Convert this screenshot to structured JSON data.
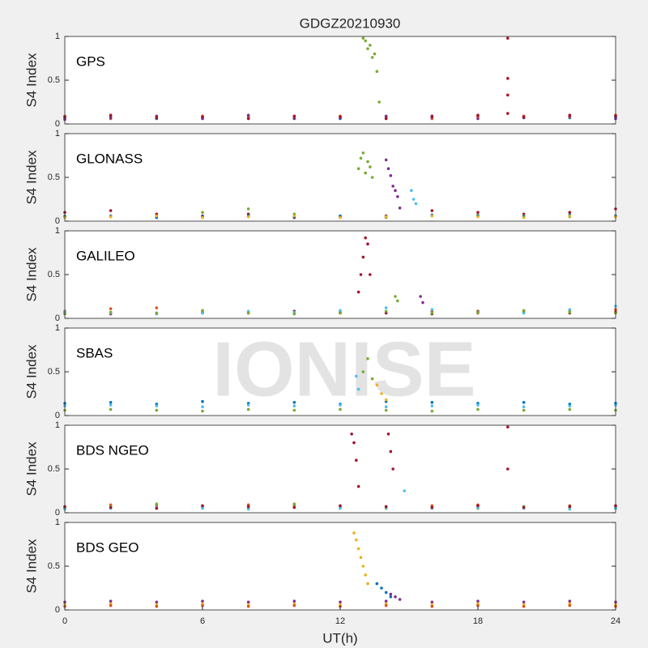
{
  "chart_data": [
    {
      "type": "scatter",
      "title": "GDGZ20210930",
      "label": "GPS",
      "ylabel": "S4 Index",
      "xlim": [
        0,
        24
      ],
      "ylim": [
        0,
        1
      ],
      "yticks": [
        0,
        0.5,
        1
      ],
      "series": [
        {
          "color": "#0072BD",
          "x": [
            0,
            2,
            4,
            6,
            8,
            10,
            12,
            14,
            16,
            18,
            20,
            22,
            24
          ],
          "values": [
            0.07,
            0.08,
            0.06,
            0.07,
            0.08,
            0.07,
            0.06,
            0.08,
            0.07,
            0.09,
            0.08,
            0.07,
            0.08
          ]
        },
        {
          "color": "#D95319",
          "x": [
            0,
            2,
            4,
            6,
            8,
            10,
            12,
            14,
            16,
            18,
            20,
            22,
            24
          ],
          "values": [
            0.09,
            0.06,
            0.08,
            0.09,
            0.07,
            0.08,
            0.09,
            0.07,
            0.06,
            0.08,
            0.09,
            0.08,
            0.1
          ]
        },
        {
          "color": "#7E2F8E",
          "x": [
            0,
            2,
            4,
            6,
            8,
            10,
            12,
            14,
            16,
            18,
            20,
            22,
            24
          ],
          "values": [
            0.05,
            0.07,
            0.09,
            0.06,
            0.1,
            0.06,
            0.07,
            0.09,
            0.08,
            0.06,
            0.07,
            0.09,
            0.06
          ]
        },
        {
          "color": "#A2142F",
          "x": [
            0,
            2,
            4,
            6,
            8,
            10,
            12,
            14,
            16,
            18,
            20,
            22,
            24
          ],
          "values": [
            0.08,
            0.1,
            0.07,
            0.08,
            0.06,
            0.09,
            0.08,
            0.06,
            0.09,
            0.1,
            0.08,
            0.1,
            0.09
          ]
        },
        {
          "color": "#77AC30",
          "x": [
            13,
            13.1,
            13.2,
            13.3,
            13.4,
            13.5,
            13.6,
            13.7
          ],
          "values": [
            0.98,
            0.95,
            0.86,
            0.9,
            0.76,
            0.8,
            0.6,
            0.25
          ]
        },
        {
          "color": "#A2142F",
          "x": [
            19.3,
            19.3,
            19.3,
            19.3
          ],
          "values": [
            0.98,
            0.52,
            0.33,
            0.12
          ]
        }
      ]
    },
    {
      "type": "scatter",
      "label": "GLONASS",
      "ylabel": "S4 Index",
      "xlim": [
        0,
        24
      ],
      "ylim": [
        0,
        1
      ],
      "yticks": [
        0,
        0.5,
        1
      ],
      "series": [
        {
          "color": "#A2142F",
          "x": [
            0,
            2,
            4,
            6,
            8,
            10,
            12,
            14,
            16,
            18,
            20,
            22,
            24
          ],
          "values": [
            0.1,
            0.12,
            0.08,
            0.06,
            0.08,
            0.04,
            0.05,
            0.06,
            0.12,
            0.1,
            0.08,
            0.1,
            0.14
          ]
        },
        {
          "color": "#77AC30",
          "x": [
            0,
            2,
            4,
            6,
            8,
            10,
            12,
            14,
            16,
            18,
            20,
            22,
            24
          ],
          "values": [
            0.06,
            0.05,
            0.05,
            0.1,
            0.14,
            0.08,
            0.05,
            0.04,
            0.06,
            0.07,
            0.06,
            0.05,
            0.06
          ]
        },
        {
          "color": "#0072BD",
          "x": [
            0,
            2,
            4,
            6,
            8,
            10,
            12,
            14,
            16,
            18,
            20,
            22,
            24
          ],
          "values": [
            0.05,
            0.06,
            0.04,
            0.05,
            0.06,
            0.05,
            0.06,
            0.05,
            0.07,
            0.06,
            0.05,
            0.07,
            0.06
          ]
        },
        {
          "color": "#EDB120",
          "x": [
            0,
            2,
            4,
            6,
            8,
            10,
            12,
            14,
            16,
            18,
            20,
            22,
            24
          ],
          "values": [
            0.04,
            0.05,
            0.06,
            0.04,
            0.05,
            0.06,
            0.04,
            0.05,
            0.06,
            0.05,
            0.04,
            0.06,
            0.05
          ]
        },
        {
          "color": "#77AC30",
          "x": [
            12.8,
            12.9,
            13,
            13.1,
            13.2,
            13.3,
            13.4
          ],
          "values": [
            0.6,
            0.72,
            0.78,
            0.55,
            0.68,
            0.62,
            0.5
          ]
        },
        {
          "color": "#7E2F8E",
          "x": [
            14,
            14.1,
            14.2,
            14.3,
            14.4,
            14.5,
            14.6
          ],
          "values": [
            0.7,
            0.6,
            0.52,
            0.4,
            0.35,
            0.28,
            0.15
          ]
        },
        {
          "color": "#4DBEEE",
          "x": [
            15.1,
            15.2,
            15.3
          ],
          "values": [
            0.35,
            0.25,
            0.2
          ]
        }
      ]
    },
    {
      "type": "scatter",
      "label": "GALILEO",
      "ylabel": "S4 Index",
      "xlim": [
        0,
        24
      ],
      "ylim": [
        0,
        1
      ],
      "yticks": [
        0,
        0.5,
        1
      ],
      "series": [
        {
          "color": "#D95319",
          "x": [
            0,
            2,
            4,
            6,
            8,
            10,
            12,
            14,
            16,
            18,
            20,
            22,
            24
          ],
          "values": [
            0.08,
            0.11,
            0.12,
            0.06,
            0.07,
            0.08,
            0.06,
            0.07,
            0.08,
            0.06,
            0.07,
            0.08,
            0.1
          ]
        },
        {
          "color": "#A2142F",
          "x": [
            0,
            2,
            4,
            6,
            8,
            10,
            12,
            14,
            16,
            18,
            20,
            22,
            24
          ],
          "values": [
            0.06,
            0.05,
            0.06,
            0.07,
            0.06,
            0.08,
            0.07,
            0.06,
            0.05,
            0.08,
            0.07,
            0.06,
            0.07
          ]
        },
        {
          "color": "#4DBEEE",
          "x": [
            0,
            2,
            4,
            6,
            8,
            10,
            12,
            14,
            16,
            18,
            20,
            22,
            24
          ],
          "values": [
            0.07,
            0.06,
            0.05,
            0.06,
            0.08,
            0.07,
            0.09,
            0.12,
            0.1,
            0.07,
            0.06,
            0.1,
            0.14
          ]
        },
        {
          "color": "#77AC30",
          "x": [
            0,
            2,
            4,
            6,
            8,
            10,
            12,
            14,
            16,
            18,
            20,
            22,
            24
          ],
          "values": [
            0.05,
            0.07,
            0.06,
            0.09,
            0.06,
            0.05,
            0.06,
            0.08,
            0.06,
            0.07,
            0.09,
            0.07,
            0.06
          ]
        },
        {
          "color": "#A2142F",
          "x": [
            12.8,
            12.9,
            13,
            13.1,
            13.2,
            13.3
          ],
          "values": [
            0.3,
            0.5,
            0.7,
            0.92,
            0.85,
            0.5
          ]
        },
        {
          "color": "#77AC30",
          "x": [
            14.4,
            14.5
          ],
          "values": [
            0.25,
            0.2
          ]
        },
        {
          "color": "#7E2F8E",
          "x": [
            15.5,
            15.6
          ],
          "values": [
            0.25,
            0.18
          ]
        }
      ]
    },
    {
      "type": "scatter",
      "label": "SBAS",
      "annotation": "IONISE",
      "ylabel": "S4 Index",
      "xlim": [
        0,
        24
      ],
      "ylim": [
        0,
        1
      ],
      "yticks": [
        0,
        0.5,
        1
      ],
      "series": [
        {
          "color": "#0072BD",
          "x": [
            0,
            2,
            4,
            6,
            8,
            10,
            12,
            14,
            16,
            18,
            20,
            22,
            24
          ],
          "values": [
            0.14,
            0.15,
            0.13,
            0.16,
            0.14,
            0.15,
            0.13,
            0.16,
            0.15,
            0.14,
            0.15,
            0.13,
            0.14
          ]
        },
        {
          "color": "#4DBEEE",
          "x": [
            0,
            2,
            4,
            6,
            8,
            10,
            12,
            14,
            16,
            18,
            20,
            22,
            24
          ],
          "values": [
            0.11,
            0.12,
            0.11,
            0.1,
            0.12,
            0.11,
            0.12,
            0.1,
            0.11,
            0.12,
            0.1,
            0.11,
            0.12
          ]
        },
        {
          "color": "#77AC30",
          "x": [
            0,
            2,
            4,
            6,
            8,
            10,
            12,
            14,
            16,
            18,
            20,
            22,
            24
          ],
          "values": [
            0.06,
            0.07,
            0.06,
            0.05,
            0.07,
            0.06,
            0.07,
            0.06,
            0.05,
            0.07,
            0.06,
            0.07,
            0.06
          ]
        },
        {
          "color": "#77AC30",
          "x": [
            13,
            13.2,
            13.4
          ],
          "values": [
            0.5,
            0.65,
            0.42
          ]
        },
        {
          "color": "#4DBEEE",
          "x": [
            12.7,
            12.8
          ],
          "values": [
            0.45,
            0.3
          ]
        },
        {
          "color": "#EDB120",
          "x": [
            13.6,
            13.8,
            14
          ],
          "values": [
            0.35,
            0.25,
            0.18
          ]
        }
      ]
    },
    {
      "type": "scatter",
      "label": "BDS NGEO",
      "ylabel": "S4 Index",
      "xlim": [
        0,
        24
      ],
      "ylim": [
        0,
        1
      ],
      "yticks": [
        0,
        0.5,
        1
      ],
      "series": [
        {
          "color": "#D95319",
          "x": [
            0,
            2,
            4,
            6,
            8,
            10,
            12,
            14,
            16,
            18,
            20,
            22,
            24
          ],
          "values": [
            0.06,
            0.09,
            0.08,
            0.07,
            0.09,
            0.08,
            0.06,
            0.07,
            0.08,
            0.09,
            0.07,
            0.08,
            0.06
          ]
        },
        {
          "color": "#77AC30",
          "x": [
            0,
            2,
            4,
            6,
            8,
            10,
            12,
            14,
            16,
            18,
            20,
            22,
            24
          ],
          "values": [
            0.05,
            0.07,
            0.1,
            0.06,
            0.05,
            0.1,
            0.07,
            0.05,
            0.06,
            0.05,
            0.07,
            0.06,
            0.05
          ]
        },
        {
          "color": "#4DBEEE",
          "x": [
            0,
            2,
            4,
            6,
            8,
            10,
            12,
            14,
            16,
            18,
            20,
            22,
            24
          ],
          "values": [
            0.04,
            0.05,
            0.06,
            0.05,
            0.04,
            0.06,
            0.05,
            0.06,
            0.05,
            0.06,
            0.05,
            0.04,
            0.05
          ]
        },
        {
          "color": "#A2142F",
          "x": [
            0,
            2,
            4,
            6,
            8,
            10,
            12,
            14,
            16,
            18,
            20,
            22,
            24
          ],
          "values": [
            0.07,
            0.06,
            0.05,
            0.08,
            0.07,
            0.06,
            0.08,
            0.07,
            0.06,
            0.08,
            0.06,
            0.07,
            0.08
          ]
        },
        {
          "color": "#A2142F",
          "x": [
            12.5,
            12.6,
            12.7,
            12.8
          ],
          "values": [
            0.9,
            0.8,
            0.6,
            0.3
          ]
        },
        {
          "color": "#A2142F",
          "x": [
            14.1,
            14.2,
            14.3
          ],
          "values": [
            0.9,
            0.7,
            0.5
          ]
        },
        {
          "color": "#4DBEEE",
          "x": [
            14.8
          ],
          "values": [
            0.25
          ]
        },
        {
          "color": "#A2142F",
          "x": [
            19.3,
            19.3
          ],
          "values": [
            0.98,
            0.5
          ]
        }
      ]
    },
    {
      "type": "scatter",
      "label": "BDS GEO",
      "ylabel": "S4 Index",
      "xlabel": "UT(h)",
      "xlim": [
        0,
        24
      ],
      "ylim": [
        0,
        1
      ],
      "yticks": [
        0,
        0.5,
        1
      ],
      "xticks": [
        0,
        6,
        12,
        18,
        24
      ],
      "series": [
        {
          "color": "#7E2F8E",
          "x": [
            0,
            2,
            4,
            6,
            8,
            10,
            12,
            14,
            16,
            18,
            20,
            22,
            24
          ],
          "values": [
            0.09,
            0.1,
            0.09,
            0.1,
            0.09,
            0.1,
            0.09,
            0.1,
            0.09,
            0.1,
            0.09,
            0.1,
            0.09
          ]
        },
        {
          "color": "#EDB120",
          "x": [
            0,
            2,
            4,
            6,
            8,
            10,
            12,
            14,
            16,
            18,
            20,
            22,
            24
          ],
          "values": [
            0.06,
            0.07,
            0.06,
            0.07,
            0.06,
            0.07,
            0.06,
            0.07,
            0.06,
            0.07,
            0.06,
            0.07,
            0.06
          ]
        },
        {
          "color": "#D95319",
          "x": [
            0,
            2,
            4,
            6,
            8,
            10,
            12,
            14,
            16,
            18,
            20,
            22,
            24
          ],
          "values": [
            0.04,
            0.05,
            0.04,
            0.05,
            0.04,
            0.05,
            0.04,
            0.05,
            0.04,
            0.05,
            0.04,
            0.05,
            0.04
          ]
        },
        {
          "color": "#EDB120",
          "x": [
            12.6,
            12.7,
            12.8,
            12.9,
            13,
            13.1,
            13.2
          ],
          "values": [
            0.88,
            0.8,
            0.7,
            0.6,
            0.5,
            0.4,
            0.3
          ]
        },
        {
          "color": "#0072BD",
          "x": [
            13.6,
            13.8,
            14,
            14.2
          ],
          "values": [
            0.3,
            0.25,
            0.2,
            0.15
          ]
        },
        {
          "color": "#7E2F8E",
          "x": [
            14.2,
            14.4,
            14.6
          ],
          "values": [
            0.18,
            0.15,
            0.12
          ]
        }
      ]
    }
  ]
}
